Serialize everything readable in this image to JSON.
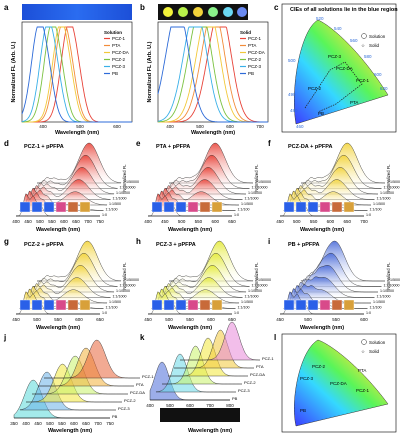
{
  "figure": {
    "panels": {
      "a": {
        "letter": "a",
        "xlabel": "Wavelength (nm)",
        "ylabel": "Normalized FL (Arb. U.)",
        "legend_title": "Solution",
        "xticks": [
          "400",
          "500",
          "600"
        ]
      },
      "b": {
        "letter": "b",
        "xlabel": "Wavelength (nm)",
        "ylabel": "Normalized FL (Arb. U.)",
        "legend_title": "Solid",
        "xticks": [
          "400",
          "500",
          "600",
          "700"
        ]
      },
      "c": {
        "letter": "c",
        "title": "CIEs of all solutions lie in the blue region",
        "legend": [
          "Solution",
          "Solid"
        ],
        "points": [
          "PCZ-3",
          "PCZ-DA",
          "PCZ-2",
          "PCZ-1",
          "PTA",
          "PB"
        ],
        "wl_ticks": [
          "520",
          "540",
          "560",
          "580",
          "600",
          "620",
          "500",
          "490",
          "480",
          "460"
        ]
      },
      "d": {
        "letter": "d",
        "title": "PCZ-1 + pPFPA",
        "xticks": [
          "400",
          "450",
          "500",
          "550",
          "600",
          "650",
          "700",
          "750"
        ]
      },
      "e": {
        "letter": "e",
        "title": "PTA + pPFPA",
        "xticks": [
          "400",
          "450",
          "500",
          "550",
          "600",
          "650"
        ]
      },
      "f": {
        "letter": "f",
        "title": "PCZ-DA + pPFPA",
        "xticks": [
          "450",
          "500",
          "550",
          "600",
          "650",
          "700"
        ]
      },
      "g": {
        "letter": "g",
        "title": "PCZ-2 + pPFPA",
        "xticks": [
          "450",
          "500",
          "550",
          "600",
          "650"
        ]
      },
      "h": {
        "letter": "h",
        "title": "PCZ-3 + pPFPA",
        "xticks": [
          "450",
          "500",
          "550",
          "600",
          "650"
        ]
      },
      "i": {
        "letter": "i",
        "title": "PB + pPFPA",
        "xticks": [
          "450",
          "500",
          "550",
          "600"
        ]
      },
      "j": {
        "letter": "j",
        "xticks": [
          "350",
          "400",
          "450",
          "500",
          "550",
          "600",
          "650",
          "700",
          "750"
        ],
        "labels": [
          "PCZ-1",
          "PTA",
          "PCZ-DA",
          "PCZ-2",
          "PCZ-3",
          "PB"
        ]
      },
      "k": {
        "letter": "k",
        "xticks": [
          "400",
          "500",
          "600",
          "700",
          "800"
        ],
        "labels": [
          "PCZ-1",
          "PTA",
          "PCZ-DA",
          "PCZ-2",
          "PCZ-3",
          "PB"
        ]
      },
      "l": {
        "letter": "l",
        "legend": [
          "Solution",
          "Solid"
        ],
        "points": [
          "PCZ-2",
          "PCZ-DA",
          "PCZ-3",
          "PTA",
          "PCZ-1",
          "PB"
        ]
      }
    },
    "ratio_labels": [
      "1:0",
      "1:1/100",
      "1:1/500",
      "1:1/1000",
      "1:1/5000",
      "1:1/10000",
      "1:1/50000"
    ],
    "common": {
      "xlabel": "Wavelength (nm)",
      "zlabel": "Normalized FL"
    }
  },
  "chart_data": [
    {
      "type": "line",
      "panel": "a",
      "title": "",
      "xlabel": "Wavelength (nm)",
      "ylabel": "Normalized FL (Arb. U.)",
      "series": [
        {
          "name": "PCZ-1",
          "color": "#e8443a",
          "peak": 470
        },
        {
          "name": "PTA",
          "color": "#f28c3a",
          "peak": 455
        },
        {
          "name": "PCZ-DA",
          "color": "#f2c83a",
          "peak": 450
        },
        {
          "name": "PCZ-2",
          "color": "#7cc242",
          "peak": 430
        },
        {
          "name": "PCZ-3",
          "color": "#3ab0e8",
          "peak": 420
        },
        {
          "name": "PB",
          "color": "#2e6bd8",
          "peak": 400
        }
      ]
    },
    {
      "type": "line",
      "panel": "b",
      "title": "",
      "xlabel": "Wavelength (nm)",
      "ylabel": "Normalized FL (Arb. U.)",
      "series": [
        {
          "name": "PCZ-1",
          "color": "#e8443a",
          "peak": 565
        },
        {
          "name": "PTA",
          "color": "#f28c3a",
          "peak": 545
        },
        {
          "name": "PCZ-DA",
          "color": "#f2c83a",
          "peak": 530
        },
        {
          "name": "PCZ-2",
          "color": "#7cc242",
          "peak": 505
        },
        {
          "name": "PCZ-3",
          "color": "#3ab0e8",
          "peak": 490
        },
        {
          "name": "PB",
          "color": "#2e6bd8",
          "peak": 435
        }
      ]
    }
  ]
}
